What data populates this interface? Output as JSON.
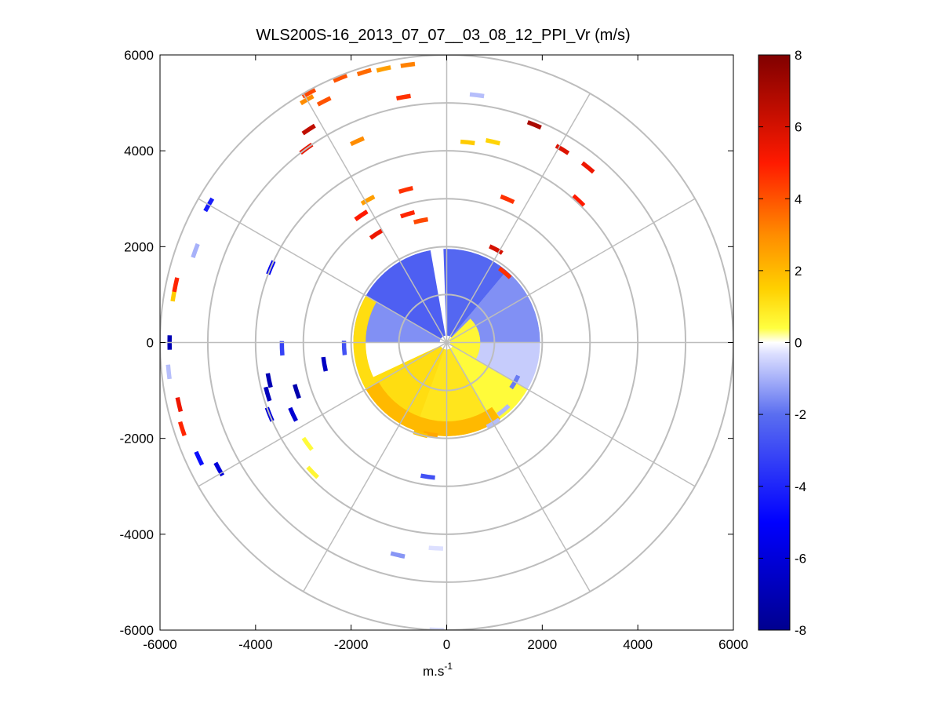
{
  "chart_data": {
    "type": "heatmap",
    "subtype": "polar-ppi",
    "title": "WLS200S-16_2013_07_07__03_08_12_PPI_Vr (m/s)",
    "xlabel": {
      "main": "m.s",
      "sup": "-1"
    },
    "ylabel": "",
    "xlim": [
      -6000,
      6000
    ],
    "ylim": [
      -6000,
      6000
    ],
    "x_ticks": [
      "-6000",
      "-4000",
      "-2000",
      "0",
      "2000",
      "4000",
      "6000"
    ],
    "y_ticks": [
      "6000",
      "4000",
      "2000",
      "0",
      "-2000",
      "-4000",
      "-6000"
    ],
    "grid": true,
    "range_rings_m": [
      1000,
      2000,
      3000,
      4000,
      5000,
      6000
    ],
    "spokes_deg": [
      0,
      30,
      60,
      90,
      120,
      150,
      180,
      210,
      240,
      270,
      300,
      330
    ],
    "colorbar": {
      "ticks": [
        "8",
        "6",
        "4",
        "2",
        "0",
        "-2",
        "-4",
        "-6",
        "-8"
      ],
      "clim": [
        -8,
        8
      ],
      "colors": [
        "#00008f",
        "#0000ff",
        "#5a6ef0",
        "#dde0ff",
        "#ffffff",
        "#ffff40",
        "#ffd000",
        "#ff8c00",
        "#ff1a00",
        "#800000"
      ],
      "stops": [
        -8,
        -5,
        -2,
        -0.3,
        0,
        0.4,
        1.5,
        3,
        5,
        8
      ],
      "position": "right"
    },
    "inner_field": {
      "max_range_m": 1950,
      "gap_azimuth_deg": [
        350,
        358
      ],
      "sectors": [
        {
          "az": [
            300,
            360
          ],
          "range": [
            150,
            1950
          ],
          "v": -2.4
        },
        {
          "az": [
            0,
            40
          ],
          "range": [
            150,
            1950
          ],
          "v": -2.2
        },
        {
          "az": [
            40,
            90
          ],
          "range": [
            150,
            1950
          ],
          "v": -1.5
        },
        {
          "az": [
            90,
            120
          ],
          "range": [
            150,
            1950
          ],
          "v": -0.6
        },
        {
          "az": [
            120,
            150
          ],
          "range": [
            150,
            1950
          ],
          "v": 0.5
        },
        {
          "az": [
            150,
            200
          ],
          "range": [
            150,
            1950
          ],
          "v": 1.0
        },
        {
          "az": [
            200,
            245
          ],
          "range": [
            150,
            1950
          ],
          "v": 1.2
        },
        {
          "az": [
            245,
            270
          ],
          "range": [
            150,
            1950
          ],
          "v": 0.0
        },
        {
          "az": [
            270,
            300
          ],
          "range": [
            150,
            1950
          ],
          "v": -1.5
        },
        {
          "az": [
            45,
            120
          ],
          "range": [
            80,
            700
          ],
          "v": 0.6
        }
      ],
      "outer_band": [
        {
          "az": [
            145,
            240
          ],
          "range": [
            1650,
            1950
          ],
          "v": 2.0
        },
        {
          "az": [
            240,
            300
          ],
          "range": [
            1700,
            1950
          ],
          "v": 1.2
        }
      ]
    },
    "scattered_echoes": [
      {
        "az": 352,
        "r": 5850,
        "v": 3.2
      },
      {
        "az": 347,
        "r": 5860,
        "v": 2.6
      },
      {
        "az": 343,
        "r": 5900,
        "v": 3.6
      },
      {
        "az": 338,
        "r": 5950,
        "v": 4.0
      },
      {
        "az": 331,
        "r": 5950,
        "v": 4.2
      },
      {
        "az": 333,
        "r": 5650,
        "v": 4.0
      },
      {
        "az": 330,
        "r": 5850,
        "v": 3.0
      },
      {
        "az": 327,
        "r": 5300,
        "v": 6.5
      },
      {
        "az": 324,
        "r": 5000,
        "v": 5.5
      },
      {
        "az": 350,
        "r": 5200,
        "v": 4.6
      },
      {
        "az": 336,
        "r": 4600,
        "v": 3.0
      },
      {
        "az": 331,
        "r": 3400,
        "v": 2.6
      },
      {
        "az": 345,
        "r": 3300,
        "v": 4.6
      },
      {
        "az": 326,
        "r": 3200,
        "v": 5.0
      },
      {
        "az": 343,
        "r": 2800,
        "v": 4.8
      },
      {
        "az": 348,
        "r": 2600,
        "v": 4.2
      },
      {
        "az": 327,
        "r": 2700,
        "v": 5.4
      },
      {
        "az": 7,
        "r": 5200,
        "v": -0.8
      },
      {
        "az": 22,
        "r": 4900,
        "v": 7.0
      },
      {
        "az": 6,
        "r": 4200,
        "v": 1.6
      },
      {
        "az": 13,
        "r": 4300,
        "v": 1.4
      },
      {
        "az": 31,
        "r": 4700,
        "v": 5.8
      },
      {
        "az": 39,
        "r": 4700,
        "v": 5.4
      },
      {
        "az": 43,
        "r": 4050,
        "v": 5.0
      },
      {
        "az": 23,
        "r": 3250,
        "v": 4.6
      },
      {
        "az": 28,
        "r": 2200,
        "v": 6.0
      },
      {
        "az": 40,
        "r": 1900,
        "v": 4.6
      },
      {
        "az": 280,
        "r": 5800,
        "v": 1.6
      },
      {
        "az": 282,
        "r": 5800,
        "v": 4.8
      },
      {
        "az": 270,
        "r": 5800,
        "v": -7.0
      },
      {
        "az": 264,
        "r": 5850,
        "v": -0.8
      },
      {
        "az": 257,
        "r": 5750,
        "v": 5.4
      },
      {
        "az": 252,
        "r": 5820,
        "v": 4.8
      },
      {
        "az": 290,
        "r": 5600,
        "v": -1.0
      },
      {
        "az": 300,
        "r": 5750,
        "v": -4.2
      },
      {
        "az": 245,
        "r": 5720,
        "v": -4.6
      },
      {
        "az": 241,
        "r": 5450,
        "v": -6.0
      },
      {
        "az": 293,
        "r": 4000,
        "v": -5.4
      },
      {
        "az": 268,
        "r": 3450,
        "v": -3.2
      },
      {
        "az": 258,
        "r": 3800,
        "v": -7.0
      },
      {
        "az": 254,
        "r": 3900,
        "v": -6.8
      },
      {
        "az": 248,
        "r": 4000,
        "v": -6.0
      },
      {
        "az": 252,
        "r": 3300,
        "v": -7.2
      },
      {
        "az": 245,
        "r": 3550,
        "v": -6.2
      },
      {
        "az": 260,
        "r": 2600,
        "v": -6.6
      },
      {
        "az": 267,
        "r": 2150,
        "v": -2.8
      },
      {
        "az": 234,
        "r": 3600,
        "v": 0.5
      },
      {
        "az": 226,
        "r": 3900,
        "v": 0.6
      },
      {
        "az": 188,
        "r": 2830,
        "v": -2.8
      },
      {
        "az": 193,
        "r": 4550,
        "v": -1.4
      },
      {
        "az": 183,
        "r": 4300,
        "v": -0.3
      },
      {
        "az": 182,
        "r": 6000,
        "v": -0.4
      },
      {
        "az": 190,
        "r": 1950,
        "v": 2.4
      },
      {
        "az": 196,
        "r": 1990,
        "v": 1.8
      },
      {
        "az": 150,
        "r": 1950,
        "v": -0.8
      },
      {
        "az": 140,
        "r": 1850,
        "v": -0.9
      },
      {
        "az": 120,
        "r": 1650,
        "v": -1.8
      }
    ]
  }
}
